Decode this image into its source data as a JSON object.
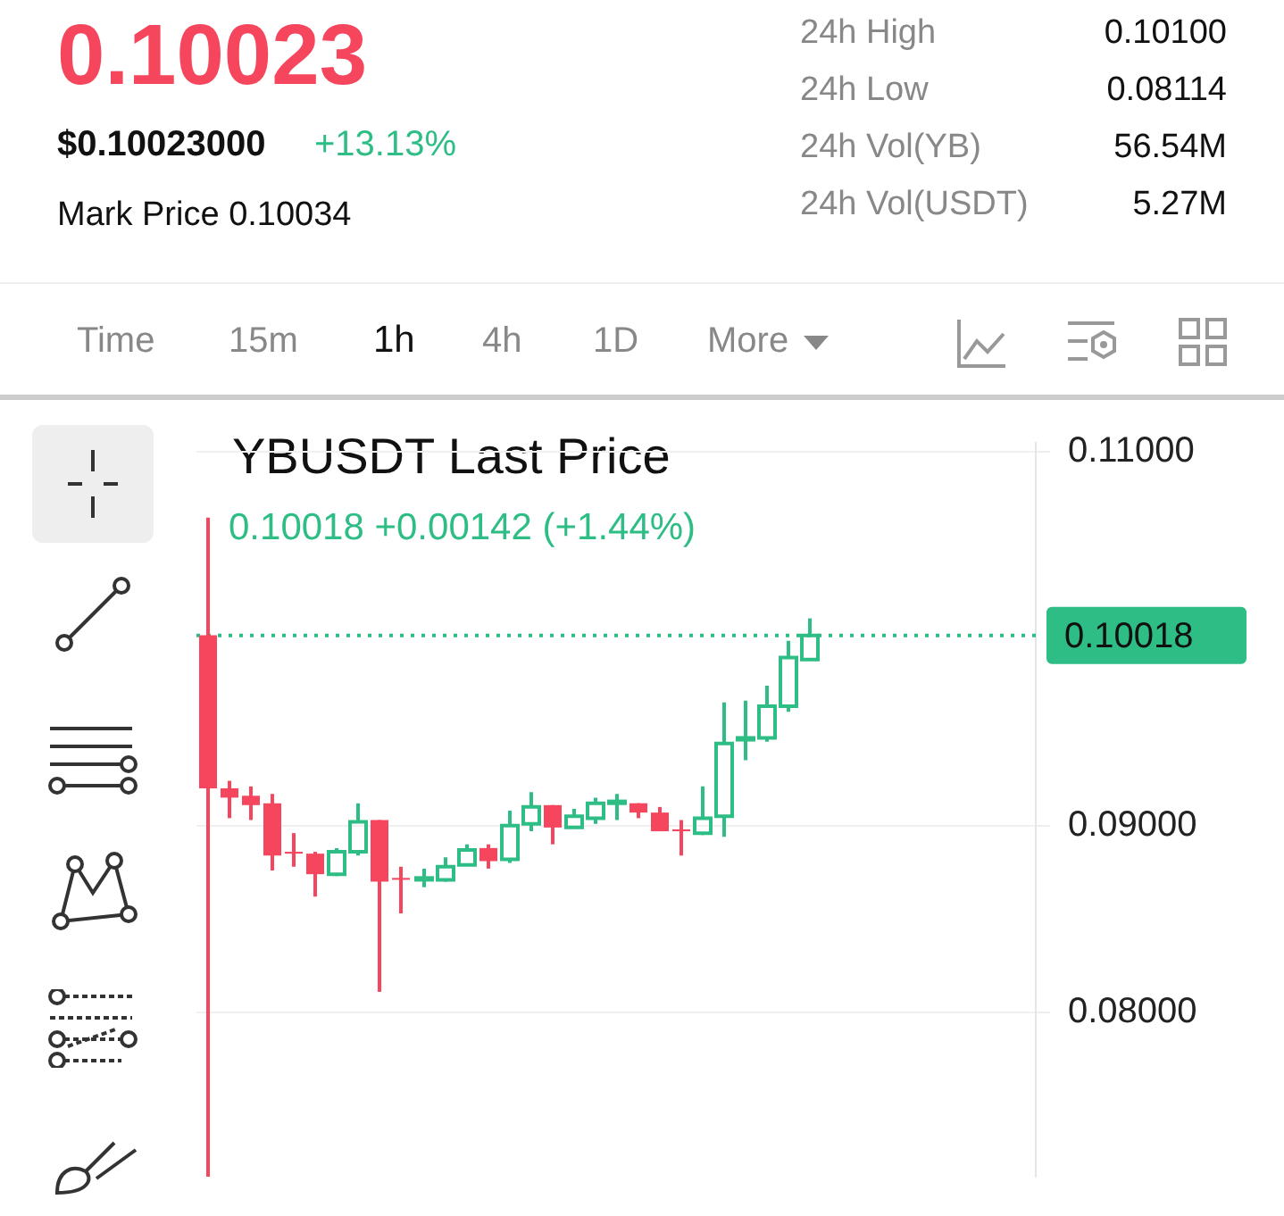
{
  "chart_data": {
    "type": "candlestick",
    "title": "YBUSDT Last Price",
    "subtitle": "0.10018  +0.00142 (+1.44%)",
    "categories": [
      null,
      null,
      null,
      null,
      null,
      null,
      null,
      null,
      null,
      null,
      null,
      null,
      null,
      null,
      null,
      null,
      null,
      null,
      null,
      null,
      null,
      null,
      null,
      null,
      null,
      null,
      null,
      null,
      null,
      null,
      null,
      null,
      null,
      null,
      null,
      null,
      null,
      null,
      null
    ],
    "ohlc": [
      [
        0.1002,
        0.1065,
        0.0712,
        0.092
      ],
      [
        0.092,
        0.0924,
        0.0904,
        0.0915
      ],
      [
        0.0916,
        0.0921,
        0.0903,
        0.0911
      ],
      [
        0.0912,
        0.0917,
        0.0876,
        0.0884
      ],
      [
        0.0886,
        0.0896,
        0.0878,
        0.0885
      ],
      [
        0.0885,
        0.0886,
        0.0862,
        0.0874
      ],
      [
        0.0874,
        0.0888,
        0.0873,
        0.0886
      ],
      [
        0.0886,
        0.0912,
        0.0884,
        0.0902
      ],
      [
        0.0903,
        0.0903,
        0.0811,
        0.087
      ],
      [
        0.0872,
        0.0878,
        0.0853,
        0.0871
      ],
      [
        0.0871,
        0.0877,
        0.0867,
        0.0872
      ],
      [
        0.0871,
        0.0883,
        0.087,
        0.0878
      ],
      [
        0.0879,
        0.089,
        0.0879,
        0.0887
      ],
      [
        0.0888,
        0.089,
        0.0877,
        0.0881
      ],
      [
        0.0882,
        0.0908,
        0.088,
        0.09
      ],
      [
        0.0901,
        0.0918,
        0.0897,
        0.091
      ],
      [
        0.0911,
        0.0911,
        0.089,
        0.0899
      ],
      [
        0.0899,
        0.0909,
        0.0899,
        0.0905
      ],
      [
        0.0904,
        0.0915,
        0.0901,
        0.0912
      ],
      [
        0.0912,
        0.0917,
        0.0903,
        0.0913
      ],
      [
        0.0912,
        0.0912,
        0.0904,
        0.0907
      ],
      [
        0.0907,
        0.091,
        0.0897,
        0.0897
      ],
      [
        0.0898,
        0.0903,
        0.0884,
        0.0897
      ],
      [
        0.0896,
        0.0921,
        0.0895,
        0.0904
      ],
      [
        0.0905,
        0.0966,
        0.0894,
        0.0944
      ],
      [
        0.0946,
        0.0967,
        0.0935,
        0.0947
      ],
      [
        0.0947,
        0.0975,
        0.0945,
        0.0964
      ],
      [
        0.0964,
        0.0999,
        0.0961,
        0.099
      ],
      [
        0.0989,
        0.1011,
        0.0989,
        0.10018
      ],
      null,
      null,
      null,
      null,
      null,
      null,
      null,
      null,
      null,
      null
    ],
    "colors": [
      "#f6465d",
      "#f6465d",
      "#f6465d",
      "#f6465d",
      "#f6465d",
      "#f6465d",
      "#2ebd85",
      "#2ebd85",
      "#f6465d",
      "#f6465d",
      "#2ebd85",
      "#2ebd85",
      "#2ebd85",
      "#f6465d",
      "#2ebd85",
      "#2ebd85",
      "#f6465d",
      "#2ebd85",
      "#2ebd85",
      "#2ebd85",
      "#f6465d",
      "#f6465d",
      "#f6465d",
      "#2ebd85",
      "#2ebd85",
      "#2ebd85",
      "#2ebd85",
      "#2ebd85",
      "#2ebd85",
      null,
      null,
      null,
      null,
      null,
      null,
      null,
      null,
      null,
      null
    ],
    "ylim": [
      0.0712,
      0.1105
    ],
    "yticks": [
      {
        "value": 0.08,
        "label": "0.08000"
      },
      {
        "value": 0.09,
        "label": "0.09000"
      },
      {
        "value": 0.11,
        "label": "0.11000"
      }
    ],
    "grid": "y",
    "tick_labels": "y",
    "ref_lines": [
      {
        "axis": "y",
        "value": 0.10018,
        "label": "0.10018",
        "color": "#2ebd85",
        "line_style": "dotted"
      }
    ],
    "annotations": [
      "0.10023",
      "$0.10023000",
      "+13.13%",
      "Mark Price 0.10034",
      "24h High",
      "0.10100",
      "24h Low",
      "0.08114",
      "24h Vol(YB)",
      "56.54M",
      "24h Vol(USDT)",
      "5.27M",
      "Time",
      "15m",
      "1h",
      "4h",
      "1D",
      "More"
    ]
  }
}
